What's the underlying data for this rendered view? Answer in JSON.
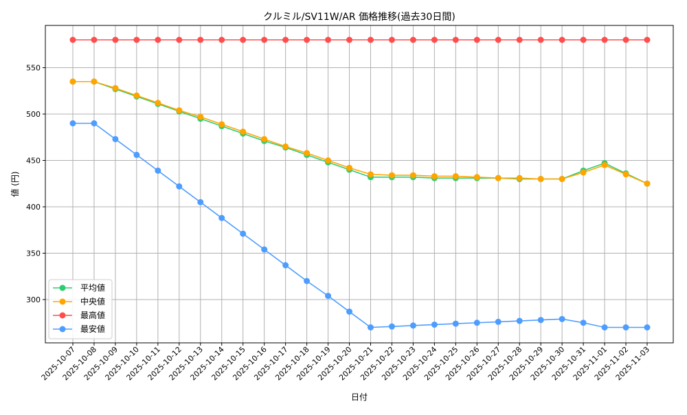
{
  "chart_data": {
    "type": "line",
    "title": "クルミル/SV11W/AR 価格推移(過去30日間)",
    "xlabel": "日付",
    "ylabel": "値 (円)",
    "ylim": [
      255,
      592
    ],
    "yticks": [
      300,
      350,
      400,
      450,
      500,
      550
    ],
    "grid": true,
    "legend_position": "lower-left",
    "x": [
      "2025-10-07",
      "2025-10-08",
      "2025-10-09",
      "2025-10-10",
      "2025-10-11",
      "2025-10-12",
      "2025-10-13",
      "2025-10-14",
      "2025-10-15",
      "2025-10-16",
      "2025-10-17",
      "2025-10-18",
      "2025-10-19",
      "2025-10-20",
      "2025-10-21",
      "2025-10-22",
      "2025-10-23",
      "2025-10-24",
      "2025-10-25",
      "2025-10-26",
      "2025-10-27",
      "2025-10-28",
      "2025-10-29",
      "2025-10-30",
      "2025-10-31",
      "2025-11-01",
      "2025-11-02",
      "2025-11-03"
    ],
    "series": [
      {
        "name": "平均値",
        "color": "#2ecc71",
        "values": [
          535,
          535,
          527,
          519,
          511,
          503,
          495,
          487,
          479,
          471,
          464,
          456,
          448,
          440,
          432,
          432,
          432,
          431,
          431,
          431,
          431,
          430,
          430,
          430,
          439,
          447,
          436,
          425
        ]
      },
      {
        "name": "中央値",
        "color": "#ffa500",
        "values": [
          535,
          535,
          528,
          520,
          512,
          504,
          497,
          489,
          481,
          473,
          465,
          458,
          450,
          442,
          435,
          434,
          434,
          433,
          433,
          432,
          431,
          431,
          430,
          430,
          437,
          445,
          435,
          425
        ]
      },
      {
        "name": "最高値",
        "color": "#ff4d4d",
        "values": [
          580,
          580,
          580,
          580,
          580,
          580,
          580,
          580,
          580,
          580,
          580,
          580,
          580,
          580,
          580,
          580,
          580,
          580,
          580,
          580,
          580,
          580,
          580,
          580,
          580,
          580,
          580,
          580
        ]
      },
      {
        "name": "最安値",
        "color": "#4d9dff",
        "values": [
          490,
          490,
          473,
          456,
          439,
          422,
          405,
          388,
          371,
          354,
          337,
          320,
          304,
          287,
          270,
          271,
          272,
          273,
          274,
          275,
          276,
          277,
          278,
          279,
          275,
          270,
          270,
          270
        ]
      }
    ]
  }
}
